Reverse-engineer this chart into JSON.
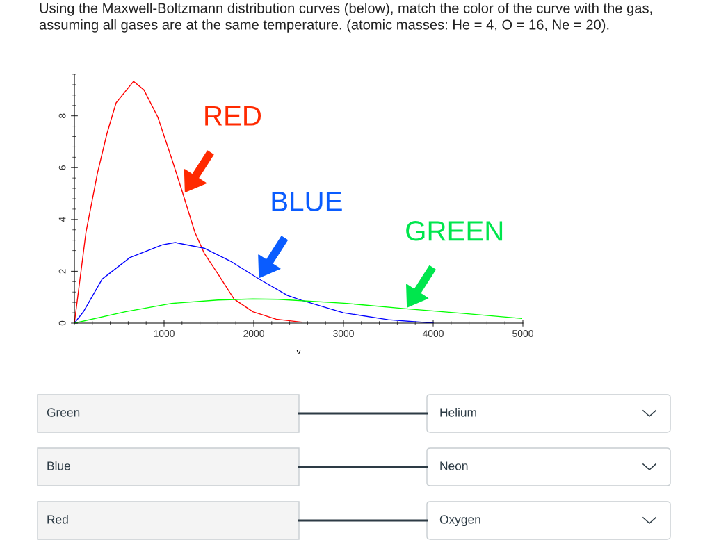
{
  "chart_data": {
    "type": "line",
    "title": "Using the Maxwell-Boltzmann distribution curves (below), match the color of the curve with the gas, assuming all gases are at the same temperature. (atomic masses: He = 4, O = 16, Ne = 20).",
    "xlabel": "v",
    "xlim": [
      0,
      5000
    ],
    "xticks": [
      1000,
      2000,
      3000,
      4000,
      5000
    ],
    "ylim": [
      0,
      9.6
    ],
    "yticks": [
      0,
      2,
      4,
      6,
      8
    ],
    "grid": false,
    "legend": false,
    "marker": "none",
    "line_style": "solid",
    "series": [
      {
        "color": "#ff0000",
        "x": [
          0,
          129,
          258,
          362,
          465,
          659,
          775,
          930,
          1085,
          1200,
          1344,
          1447,
          1600,
          1780,
          1990,
          2250,
          2530
        ],
        "values": [
          0,
          3.5,
          5.8,
          7.3,
          8.5,
          9.33,
          9.0,
          7.95,
          6.35,
          5.1,
          3.5,
          2.7,
          1.9,
          0.93,
          0.44,
          0.15,
          0.04
        ]
      },
      {
        "color": "#0000ff",
        "x": [
          0,
          103,
          310,
          620,
          980,
          1124,
          1447,
          1755,
          2065,
          2375,
          2526,
          3000,
          3500,
          4000
        ],
        "values": [
          0,
          0.45,
          1.7,
          2.53,
          3.02,
          3.11,
          2.89,
          2.36,
          1.69,
          1.07,
          0.89,
          0.4,
          0.13,
          0.0
        ]
      },
      {
        "color": "#00ff00",
        "x": [
          0,
          568,
          1085,
          1602,
          1990,
          2269,
          3038,
          3679,
          4320,
          4987
        ],
        "values": [
          0,
          0.44,
          0.76,
          0.89,
          0.93,
          0.92,
          0.76,
          0.56,
          0.38,
          0.18
        ]
      }
    ],
    "annotations": [
      {
        "text": "RED",
        "x": 1225,
        "y": 5.0
      },
      {
        "text": "BLUE",
        "x": 2050,
        "y": 1.7
      },
      {
        "text": "GREEN",
        "x": 3700,
        "y": 0.56
      },
      "Green",
      "Blue",
      "Red",
      "Helium",
      "Neon",
      "Oxygen"
    ]
  }
}
